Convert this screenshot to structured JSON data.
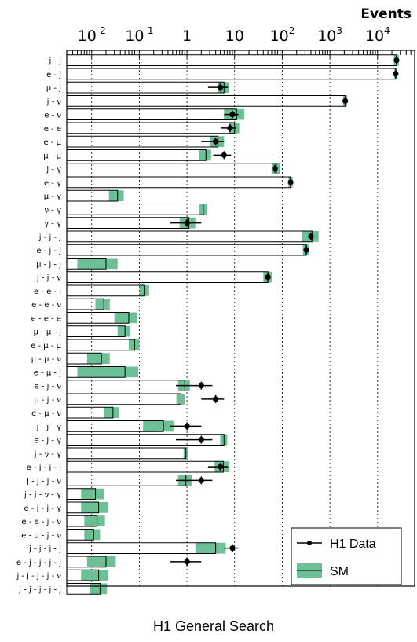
{
  "chart_data": {
    "type": "bar",
    "scale": "log",
    "xlim": [
      0.003,
      60000
    ],
    "y_title": "Events",
    "x_title": "H1 General Search",
    "ticks": [
      {
        "base": "10",
        "exp": "-2",
        "v": 0.01
      },
      {
        "base": "10",
        "exp": "-1",
        "v": 0.1
      },
      {
        "base": "1",
        "exp": "",
        "v": 1
      },
      {
        "base": "10",
        "exp": "",
        "v": 10
      },
      {
        "base": "10",
        "exp": "2",
        "v": 100
      },
      {
        "base": "10",
        "exp": "3",
        "v": 1000
      },
      {
        "base": "10",
        "exp": "4",
        "v": 10000
      }
    ],
    "gridlines": [
      0.01,
      0.1,
      1,
      10,
      100,
      1000,
      10000
    ],
    "legend": {
      "position": "bottom-right",
      "data_label": "H1 Data",
      "sm_label": "SM"
    },
    "colors": {
      "sm_band": "#6dbf96",
      "data": "#000000",
      "bar_edge": "#000000"
    },
    "categories": [
      "j - j",
      "e - j",
      "μ - j",
      "j - ν",
      "e - ν",
      "e - e",
      "e - μ",
      "μ - μ",
      "j - γ",
      "e - γ",
      "μ - γ",
      "ν - γ",
      "γ - γ",
      "j - j - j",
      "e - j - j",
      "μ - j - j",
      "j - j - ν",
      "e - e - j",
      "e - e - ν",
      "e - e - e",
      "μ - μ - j",
      "e - μ - μ",
      "μ - μ - ν",
      "e - μ - j",
      "e - j - ν",
      "μ - j - ν",
      "e - μ - ν",
      "j - j - γ",
      "e - j - γ",
      "j - ν - γ",
      "e - j - j - j",
      "j - j - j - ν",
      "j - j - ν - γ",
      "e - j - j - γ",
      "e - e - j - ν",
      "e - μ - j - ν",
      "j - j - j - j",
      "e - j - j - j - j",
      "j - j - j - j - ν",
      "j - j - j - j - j"
    ],
    "series": [
      {
        "name": "SM",
        "values": [
          25000,
          24000,
          6,
          2100,
          11,
          10,
          4.5,
          2.5,
          75,
          150,
          0.035,
          2.2,
          1.1,
          420,
          320,
          0.02,
          50,
          0.13,
          0.018,
          0.06,
          0.05,
          0.08,
          0.016,
          0.05,
          0.9,
          0.75,
          0.028,
          0.32,
          6,
          0.95,
          5.8,
          0.95,
          0.012,
          0.014,
          0.013,
          0.011,
          4,
          0.02,
          0.014,
          0.015
        ],
        "uncertainty": [
          3000,
          1500,
          1.5,
          200,
          5,
          2.5,
          1.5,
          0.7,
          15,
          15,
          0.012,
          0.4,
          0.4,
          160,
          50,
          0.015,
          10,
          0.03,
          0.006,
          0.03,
          0.015,
          0.02,
          0.008,
          0.045,
          0.25,
          0.15,
          0.01,
          0.2,
          1,
          0.1,
          2,
          0.3,
          0.006,
          0.008,
          0.006,
          0.004,
          2.5,
          0.012,
          0.008,
          0.006
        ]
      },
      {
        "name": "H1 Data",
        "values": [
          25000,
          24000,
          5,
          2100,
          9,
          8,
          4,
          6,
          70,
          150,
          null,
          null,
          1,
          400,
          320,
          null,
          50,
          null,
          null,
          null,
          null,
          null,
          null,
          null,
          2,
          4,
          null,
          1,
          2,
          null,
          5,
          2,
          null,
          null,
          null,
          null,
          9,
          1,
          null,
          null
        ]
      }
    ]
  }
}
